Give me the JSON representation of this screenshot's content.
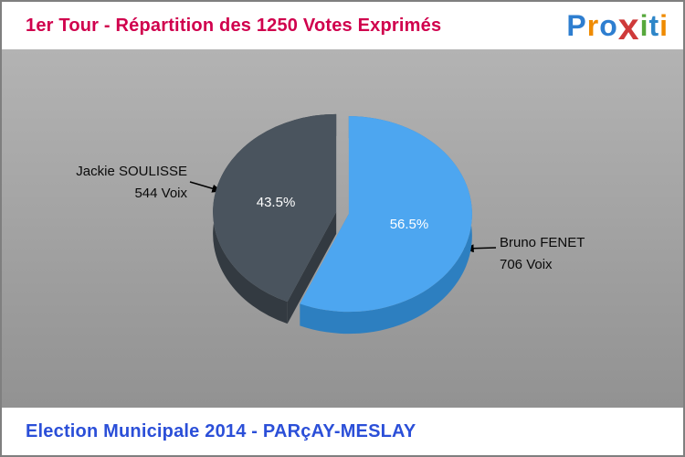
{
  "header": {
    "title": "1er Tour - Répartition des 1250 Votes Exprimés",
    "title_color": "#d0004d",
    "logo": {
      "name": "Proxiti",
      "letters": [
        {
          "char": "P",
          "color": "#2e7ed0"
        },
        {
          "char": "r",
          "color": "#ef8b00"
        },
        {
          "char": "o",
          "color": "#2e7ed0"
        },
        {
          "char": "x",
          "color": "#cf3a3a"
        },
        {
          "char": "i",
          "color": "#57a83c"
        },
        {
          "char": "t",
          "color": "#2e86c8"
        },
        {
          "char": "i",
          "color": "#ef8b00"
        }
      ]
    }
  },
  "chart_data": {
    "type": "pie",
    "title": "1er Tour - Répartition des 1250 Votes Exprimés",
    "total_votes": 1250,
    "start_angle_deg": -90,
    "direction": "clockwise",
    "effect": "3d-exploded",
    "labels_position": "callouts",
    "background": "#a6a6a6",
    "slices": [
      {
        "label": "Bruno FENET",
        "votes": 706,
        "pct": 56.5,
        "pct_label": "56.5%",
        "color": "#4da6f0",
        "side_color": "#2d7fc0",
        "callout_name": "Bruno FENET",
        "callout_votes": "706 Voix"
      },
      {
        "label": "Jackie SOULISSE",
        "votes": 544,
        "pct": 43.5,
        "pct_label": "43.5%",
        "color": "#4a545e",
        "side_color": "#333a41",
        "callout_name": "Jackie SOULISSE",
        "callout_votes": "544 Voix"
      }
    ]
  },
  "footer": {
    "text": "Election Municipale 2014 - PARçAY-MESLAY",
    "color": "#2b4fd8"
  }
}
